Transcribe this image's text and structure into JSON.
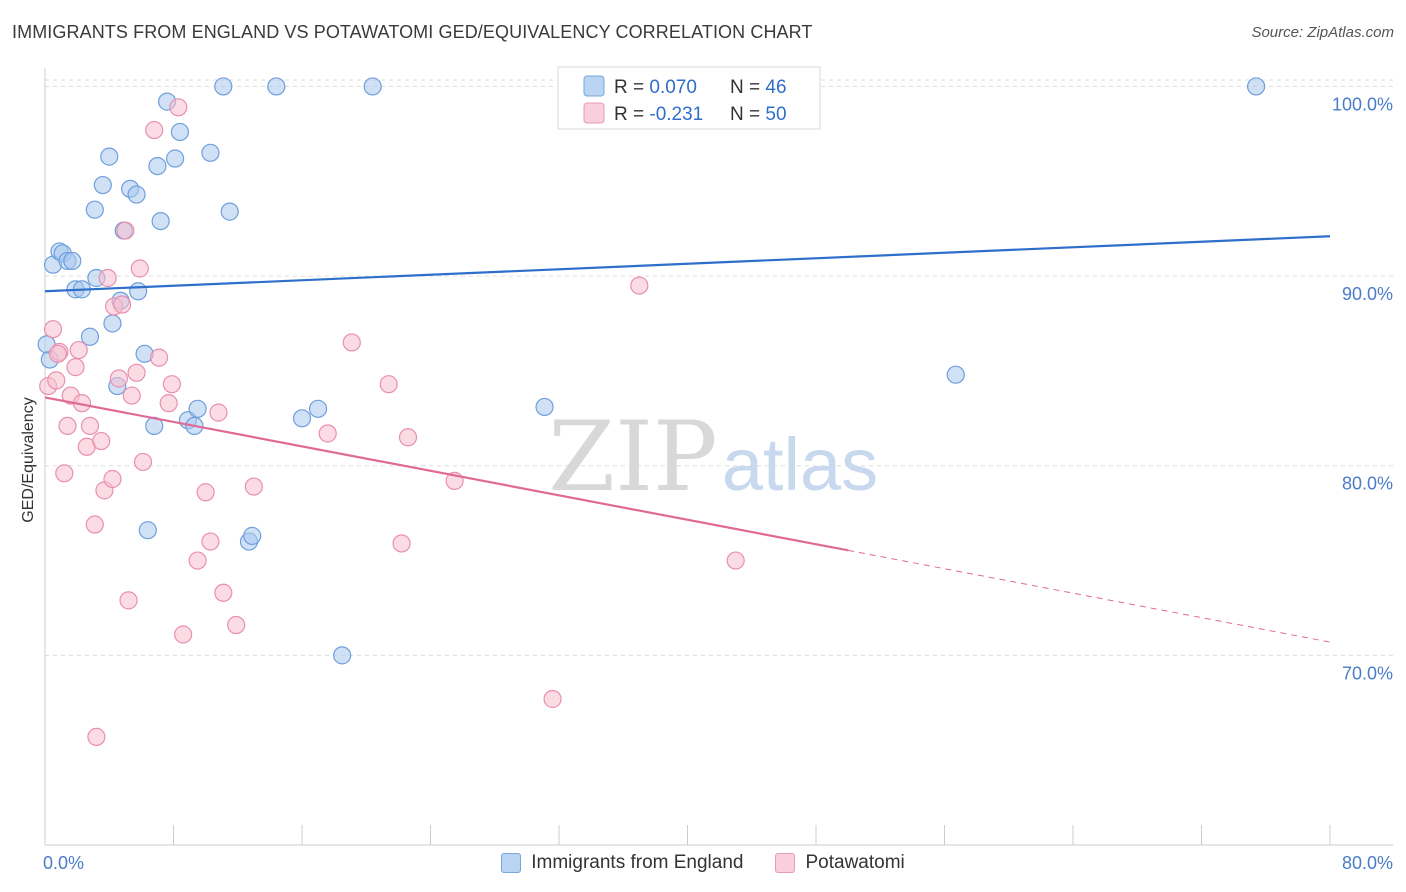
{
  "header": {
    "title": "IMMIGRANTS FROM ENGLAND VS POTAWATOMI GED/EQUIVALENCY CORRELATION CHART",
    "source": "Source: ZipAtlas.com"
  },
  "watermark": {
    "zip": "ZIP",
    "atlas": "atlas"
  },
  "legend_box": {
    "rows": [
      {
        "r_label": "R = ",
        "r_value": "0.070",
        "n_label": "N = ",
        "n_value": "46"
      },
      {
        "r_label": "R = ",
        "r_value": "-0.231",
        "n_label": "N = ",
        "n_value": "50"
      }
    ]
  },
  "colors": {
    "blue_fill": "#a9c8ee",
    "blue_stroke": "#6f9fdc",
    "blue_line": "#2f6fcc",
    "pink_fill": "#f7bfd0",
    "pink_stroke": "#e98fae",
    "pink_line": "#e06a95",
    "axis_text": "#4a7cc9",
    "grid": "#dddddd"
  },
  "chart_data": {
    "type": "scatter",
    "title": "IMMIGRANTS FROM ENGLAND VS POTAWATOMI GED/EQUIVALENCY CORRELATION CHART",
    "xlabel": "",
    "ylabel": "GED/Equivalency",
    "xlim": [
      0,
      80
    ],
    "ylim": [
      60,
      101.5
    ],
    "x_tick_labels": [
      "0.0%",
      "80.0%"
    ],
    "y_ticks": [
      70,
      80,
      90,
      100
    ],
    "y_tick_labels": [
      "70.0%",
      "80.0%",
      "90.0%",
      "100.0%"
    ],
    "grid": "horizontal dashed",
    "legend_placement": "bottom-center",
    "series": [
      {
        "name": "Immigrants from England",
        "R": 0.07,
        "N": 46,
        "trend": {
          "x": [
            0,
            80
          ],
          "y": [
            89.2,
            92.1
          ],
          "dashed_from": null
        },
        "points": [
          [
            0.3,
            85.6
          ],
          [
            0.5,
            90.6
          ],
          [
            0.9,
            91.3
          ],
          [
            1.1,
            91.2
          ],
          [
            1.4,
            90.8
          ],
          [
            1.7,
            90.8
          ],
          [
            1.9,
            89.3
          ],
          [
            2.3,
            89.3
          ],
          [
            2.8,
            86.8
          ],
          [
            3.1,
            93.5
          ],
          [
            3.2,
            89.9
          ],
          [
            3.6,
            94.8
          ],
          [
            4.0,
            96.3
          ],
          [
            4.2,
            87.5
          ],
          [
            4.5,
            84.2
          ],
          [
            4.7,
            88.7
          ],
          [
            4.9,
            92.4
          ],
          [
            5.3,
            94.6
          ],
          [
            5.7,
            94.3
          ],
          [
            5.8,
            89.2
          ],
          [
            6.2,
            85.9
          ],
          [
            6.4,
            76.6
          ],
          [
            6.8,
            82.1
          ],
          [
            7.0,
            95.8
          ],
          [
            7.2,
            92.9
          ],
          [
            7.6,
            99.2
          ],
          [
            8.1,
            96.2
          ],
          [
            8.4,
            97.6
          ],
          [
            8.9,
            82.4
          ],
          [
            9.3,
            82.1
          ],
          [
            9.5,
            83.0
          ],
          [
            10.3,
            96.5
          ],
          [
            11.1,
            100.0
          ],
          [
            11.5,
            93.4
          ],
          [
            12.7,
            76.0
          ],
          [
            12.9,
            76.3
          ],
          [
            14.4,
            100.0
          ],
          [
            16.0,
            82.5
          ],
          [
            17.0,
            83.0
          ],
          [
            18.5,
            70.0
          ],
          [
            20.4,
            100.0
          ],
          [
            31.1,
            83.1
          ],
          [
            33.0,
            100.0
          ],
          [
            56.7,
            84.8
          ],
          [
            75.4,
            100.0
          ],
          [
            0.1,
            86.4
          ]
        ]
      },
      {
        "name": "Potawatomi",
        "R": -0.231,
        "N": 50,
        "trend": {
          "x": [
            0,
            80
          ],
          "y": [
            83.6,
            70.7
          ],
          "dashed_from": 50
        },
        "points": [
          [
            0.2,
            84.2
          ],
          [
            0.5,
            87.2
          ],
          [
            0.7,
            84.5
          ],
          [
            0.9,
            86.0
          ],
          [
            1.2,
            79.6
          ],
          [
            1.4,
            82.1
          ],
          [
            1.6,
            83.7
          ],
          [
            1.9,
            85.2
          ],
          [
            2.1,
            86.1
          ],
          [
            2.3,
            83.3
          ],
          [
            2.6,
            81.0
          ],
          [
            2.8,
            82.1
          ],
          [
            3.1,
            76.9
          ],
          [
            3.2,
            65.7
          ],
          [
            3.5,
            81.3
          ],
          [
            3.7,
            78.7
          ],
          [
            3.9,
            89.9
          ],
          [
            4.2,
            79.3
          ],
          [
            4.3,
            88.4
          ],
          [
            4.6,
            84.6
          ],
          [
            4.8,
            88.5
          ],
          [
            5.0,
            92.4
          ],
          [
            5.2,
            72.9
          ],
          [
            5.4,
            83.7
          ],
          [
            5.7,
            84.9
          ],
          [
            5.9,
            90.4
          ],
          [
            6.1,
            80.2
          ],
          [
            6.8,
            97.7
          ],
          [
            7.1,
            85.7
          ],
          [
            7.7,
            83.3
          ],
          [
            7.9,
            84.3
          ],
          [
            8.3,
            98.9
          ],
          [
            8.6,
            71.1
          ],
          [
            9.5,
            75.0
          ],
          [
            10.0,
            78.6
          ],
          [
            10.3,
            76.0
          ],
          [
            10.8,
            82.8
          ],
          [
            11.1,
            73.3
          ],
          [
            11.9,
            71.6
          ],
          [
            13.0,
            78.9
          ],
          [
            17.6,
            81.7
          ],
          [
            19.1,
            86.5
          ],
          [
            21.4,
            84.3
          ],
          [
            22.2,
            75.9
          ],
          [
            22.6,
            81.5
          ],
          [
            25.5,
            79.2
          ],
          [
            31.6,
            67.7
          ],
          [
            37.0,
            89.5
          ],
          [
            43.0,
            75.0
          ],
          [
            0.8,
            85.9
          ]
        ]
      }
    ]
  }
}
